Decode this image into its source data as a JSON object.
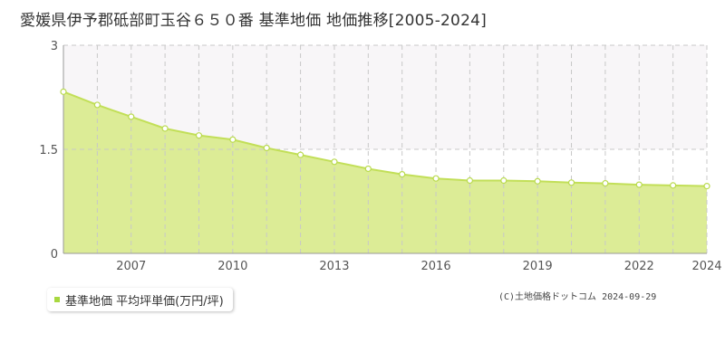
{
  "title": "愛媛県伊予郡砥部町玉谷６５０番 基準地価 地価推移[2005-2024]",
  "legend": {
    "label": "基準地価 平均坪単価(万円/坪)"
  },
  "copyright": "(C)土地価格ドットコム 2024-09-29",
  "colors": {
    "area_fill": "#dcec96",
    "line": "#c2df58",
    "marker_fill": "#ffffff",
    "marker_stroke": "#b9da4e",
    "grid": "#c8c8c8",
    "upper_band": "#f8f6f8",
    "axis": "#999999",
    "legend_swatch": "#a8d840"
  },
  "chart_data": {
    "type": "area",
    "x": [
      2005,
      2006,
      2007,
      2008,
      2009,
      2010,
      2011,
      2012,
      2013,
      2014,
      2015,
      2016,
      2017,
      2018,
      2019,
      2020,
      2021,
      2022,
      2023,
      2024
    ],
    "series": [
      {
        "values": [
          2.33,
          2.14,
          1.97,
          1.8,
          1.7,
          1.64,
          1.52,
          1.42,
          1.32,
          1.22,
          1.14,
          1.08,
          1.05,
          1.05,
          1.04,
          1.02,
          1.01,
          0.99,
          0.98,
          0.97
        ]
      }
    ],
    "xticks": [
      "2007",
      "2010",
      "2013",
      "2016",
      "2019",
      "2022",
      "2024"
    ],
    "yticks": [
      "0",
      "1.5",
      "3"
    ],
    "xlim": [
      2005,
      2024
    ],
    "ylim": [
      0,
      3
    ],
    "xlabel": "",
    "ylabel": "",
    "grid": true,
    "legend_position": "bottom-left"
  }
}
